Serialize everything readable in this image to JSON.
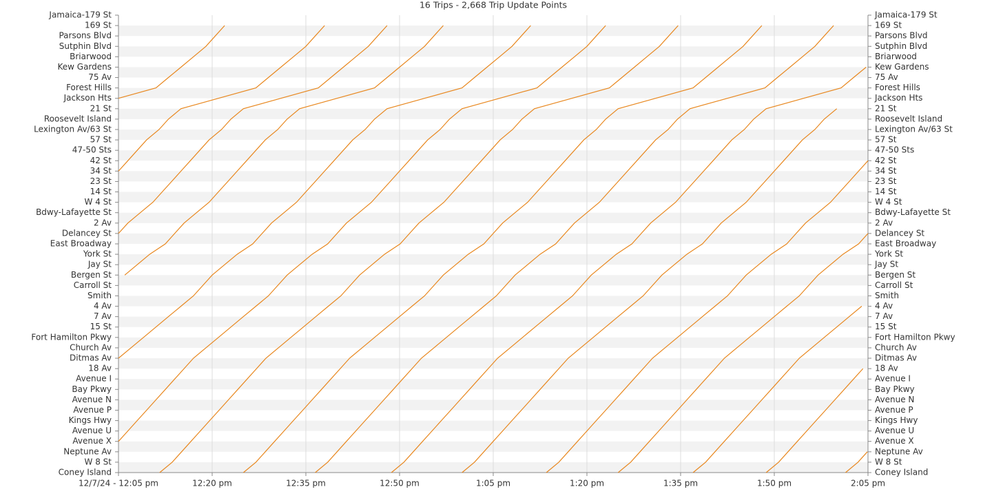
{
  "chart_data": {
    "type": "line",
    "title": "16 Trips - 2,668 Trip Update Points",
    "categories": [
      "Coney Island",
      "W 8 St",
      "Neptune Av",
      "Avenue X",
      "Avenue U",
      "Kings Hwy",
      "Avenue P",
      "Avenue N",
      "Bay Pkwy",
      "Avenue I",
      "18 Av",
      "Ditmas Av",
      "Church Av",
      "Fort Hamilton Pkwy",
      "15 St",
      "7 Av",
      "4 Av",
      "Smith",
      "Carroll St",
      "Bergen St",
      "Jay St",
      "York St",
      "East Broadway",
      "Delancey St",
      "2 Av",
      "Bdwy-Lafayette St",
      "W 4 St",
      "14 St",
      "23 St",
      "34 St",
      "42 St",
      "47-50 Sts",
      "57 St",
      "Lexington Av/63 St",
      "Roosevelt Island",
      "21 St",
      "Jackson Hts",
      "Forest Hills",
      "75 Av",
      "Kew Gardens",
      "Briarwood",
      "Sutphin Blvd",
      "Parsons Blvd",
      "169 St",
      "Jamaica-179 St"
    ],
    "xlim": [
      5,
      125
    ],
    "xticks": [
      {
        "value": 5,
        "label": "12/7/24 - 12:05 pm"
      },
      {
        "value": 20,
        "label": "12:20 pm"
      },
      {
        "value": 35,
        "label": "12:35 pm"
      },
      {
        "value": 50,
        "label": "12:50 pm"
      },
      {
        "value": 65,
        "label": "1:05 pm"
      },
      {
        "value": 80,
        "label": "1:20 pm"
      },
      {
        "value": 95,
        "label": "1:35 pm"
      },
      {
        "value": 110,
        "label": "1:50 pm"
      },
      {
        "value": 125,
        "label": "2:05 pm"
      }
    ],
    "grid": true,
    "series": [
      {
        "color": "#e8871e",
        "x": [
          null,
          null,
          null,
          null,
          null,
          null,
          null,
          null,
          null,
          null,
          null,
          null,
          null,
          null,
          null,
          null,
          null,
          null,
          null,
          null,
          null,
          null,
          null,
          null,
          null,
          null,
          null,
          null,
          null,
          null,
          null,
          null,
          null,
          null,
          null,
          null,
          5,
          11,
          13,
          15,
          17,
          19,
          20.5,
          22,
          null
        ]
      },
      {
        "color": "#e8871e",
        "x": [
          null,
          null,
          null,
          null,
          null,
          null,
          null,
          null,
          null,
          null,
          null,
          null,
          null,
          null,
          null,
          null,
          null,
          null,
          null,
          null,
          null,
          null,
          null,
          null,
          null,
          null,
          null,
          null,
          null,
          5,
          6.5,
          8,
          9.5,
          11.5,
          13,
          15,
          21,
          27,
          29,
          31,
          33,
          35,
          36.5,
          38,
          null
        ]
      },
      {
        "color": "#e8871e",
        "x": [
          null,
          null,
          null,
          null,
          null,
          null,
          null,
          null,
          null,
          null,
          null,
          null,
          null,
          null,
          null,
          null,
          null,
          null,
          null,
          null,
          null,
          null,
          null,
          5,
          6.5,
          8.5,
          10.5,
          12,
          13.5,
          15,
          16.5,
          18,
          19.5,
          21.5,
          23,
          25,
          31,
          37,
          39,
          41,
          43,
          45,
          46.5,
          48,
          null
        ]
      },
      {
        "color": "#e8871e",
        "x": [
          null,
          null,
          null,
          null,
          null,
          null,
          null,
          null,
          null,
          null,
          null,
          null,
          null,
          null,
          null,
          null,
          null,
          null,
          null,
          6,
          8,
          10,
          12.5,
          14,
          15.5,
          17.5,
          19.5,
          21,
          22.5,
          24,
          25.5,
          27,
          28.5,
          30.5,
          32,
          34,
          40,
          46,
          48,
          50,
          52,
          54,
          55.5,
          57,
          null
        ]
      },
      {
        "color": "#e8871e",
        "x": [
          null,
          null,
          null,
          null,
          null,
          null,
          null,
          null,
          null,
          null,
          null,
          5,
          7,
          9,
          11,
          13,
          15,
          17,
          18.5,
          20,
          22,
          24,
          26.5,
          28,
          29.5,
          31.5,
          33.5,
          35,
          36.5,
          38,
          39.5,
          41,
          42.5,
          44.5,
          46,
          48,
          54,
          60,
          62,
          64,
          66,
          68,
          69.5,
          71,
          null
        ]
      },
      {
        "color": "#e8871e",
        "x": [
          null,
          null,
          null,
          5,
          6.5,
          8,
          9.5,
          11,
          12.5,
          14,
          15.5,
          17,
          19,
          21,
          23,
          25,
          27,
          29,
          30.5,
          32,
          34,
          36,
          38.5,
          40,
          41.5,
          43.5,
          45.5,
          47,
          48.5,
          50,
          51.5,
          53,
          54.5,
          56.5,
          58,
          60,
          66,
          72,
          74,
          76,
          78,
          80,
          81.5,
          83,
          null
        ]
      },
      {
        "color": "#e8871e",
        "x": [
          11.6,
          13.6,
          15.1,
          16.6,
          18.1,
          19.6,
          21.1,
          22.6,
          24.1,
          25.6,
          27.1,
          28.6,
          30.6,
          32.6,
          34.6,
          36.6,
          38.6,
          40.6,
          42.1,
          43.6,
          45.6,
          47.6,
          50.1,
          51.6,
          53.1,
          55.1,
          57.1,
          58.6,
          60.1,
          61.6,
          63.1,
          64.6,
          66.1,
          68.1,
          69.6,
          71.6,
          77.6,
          83.6,
          85.6,
          87.6,
          89.6,
          91.6,
          93.1,
          94.6,
          null
        ]
      },
      {
        "color": "#e8871e",
        "x": [
          25,
          27,
          28.5,
          30,
          31.5,
          33,
          34.5,
          36,
          37.5,
          39,
          40.5,
          42,
          44,
          46,
          48,
          50,
          52,
          54,
          55.5,
          57,
          59,
          61,
          63.5,
          65,
          66.5,
          68.5,
          70.5,
          72,
          73.5,
          75,
          76.5,
          78,
          79.5,
          81.5,
          83,
          85,
          91,
          97,
          99,
          101,
          103,
          105,
          106.5,
          108,
          null
        ]
      },
      {
        "color": "#e8871e",
        "x": [
          36.5,
          38.5,
          40,
          41.5,
          43,
          44.5,
          46,
          47.5,
          49,
          50.5,
          52,
          53.5,
          55.5,
          57.5,
          59.5,
          61.5,
          63.5,
          65.5,
          67,
          68.5,
          70.5,
          72.5,
          75,
          76.5,
          78,
          80,
          82,
          83.5,
          85,
          86.5,
          88,
          89.5,
          91,
          93,
          94.5,
          96.5,
          102.5,
          108.5,
          110.5,
          112.5,
          114.5,
          116.5,
          118,
          119.5,
          null
        ]
      },
      {
        "color": "#e8871e",
        "x": [
          48.7,
          50.7,
          52.2,
          53.7,
          55.2,
          56.7,
          58.2,
          59.7,
          61.2,
          62.7,
          64.2,
          65.7,
          67.7,
          69.7,
          71.7,
          73.7,
          75.7,
          77.7,
          79.2,
          80.7,
          82.7,
          84.7,
          87.2,
          88.7,
          90.2,
          92.2,
          94.2,
          95.7,
          97.2,
          98.7,
          100.2,
          101.7,
          103.2,
          105.2,
          106.7,
          108.7,
          114.7,
          120.7,
          122.7,
          124.7,
          null,
          null,
          null,
          null,
          null
        ]
      },
      {
        "color": "#e8871e",
        "x": [
          60,
          62,
          63.5,
          65,
          66.5,
          68,
          69.5,
          71,
          72.5,
          74,
          75.5,
          77,
          79,
          81,
          83,
          85,
          87,
          89,
          90.5,
          92,
          94,
          96,
          98.5,
          100,
          101.5,
          103.5,
          105.5,
          107,
          108.5,
          110,
          111.5,
          113,
          114.5,
          116.5,
          118,
          120,
          null,
          null,
          null,
          null,
          null,
          null,
          null,
          null,
          null
        ]
      },
      {
        "color": "#e8871e",
        "x": [
          73.5,
          75.5,
          77,
          78.5,
          80,
          81.5,
          83,
          84.5,
          86,
          87.5,
          89,
          90.5,
          92.5,
          94.5,
          96.5,
          98.5,
          100.5,
          102.5,
          104,
          105.5,
          107.5,
          109.5,
          112,
          113.5,
          115,
          117,
          119,
          120.5,
          122,
          123.5,
          125,
          null,
          null,
          null,
          null,
          null,
          null,
          null,
          null,
          null,
          null,
          null,
          null,
          null,
          null
        ]
      },
      {
        "color": "#e8871e",
        "x": [
          85,
          87,
          88.5,
          90,
          91.5,
          93,
          94.5,
          96,
          97.5,
          99,
          100.5,
          102,
          104,
          106,
          108,
          110,
          112,
          114,
          115.5,
          117,
          119,
          121,
          123.5,
          125,
          null,
          null,
          null,
          null,
          null,
          null,
          null,
          null,
          null,
          null,
          null,
          null,
          null,
          null,
          null,
          null,
          null,
          null,
          null,
          null,
          null
        ]
      },
      {
        "color": "#e8871e",
        "x": [
          97,
          99,
          100.5,
          102,
          103.5,
          105,
          106.5,
          108,
          109.5,
          111,
          112.5,
          114,
          116,
          118,
          120,
          122,
          124,
          null,
          null,
          null,
          null,
          null,
          null,
          null,
          null,
          null,
          null,
          null,
          null,
          null,
          null,
          null,
          null,
          null,
          null,
          null,
          null,
          null,
          null,
          null,
          null,
          null,
          null,
          null,
          null
        ]
      },
      {
        "color": "#e8871e",
        "x": [
          108.7,
          110.7,
          112.2,
          113.7,
          115.2,
          116.7,
          118.2,
          119.7,
          121.2,
          122.7,
          124.2,
          null,
          null,
          null,
          null,
          null,
          null,
          null,
          null,
          null,
          null,
          null,
          null,
          null,
          null,
          null,
          null,
          null,
          null,
          null,
          null,
          null,
          null,
          null,
          null,
          null,
          null,
          null,
          null,
          null,
          null,
          null,
          null,
          null,
          null
        ]
      },
      {
        "color": "#e8871e",
        "x": [
          121.4,
          123.4,
          124.9,
          null,
          null,
          null,
          null,
          null,
          null,
          null,
          null,
          null,
          null,
          null,
          null,
          null,
          null,
          null,
          null,
          null,
          null,
          null,
          null,
          null,
          null,
          null,
          null,
          null,
          null,
          null,
          null,
          null,
          null,
          null,
          null,
          null,
          null,
          null,
          null,
          null,
          null,
          null,
          null,
          null,
          null
        ]
      }
    ]
  }
}
